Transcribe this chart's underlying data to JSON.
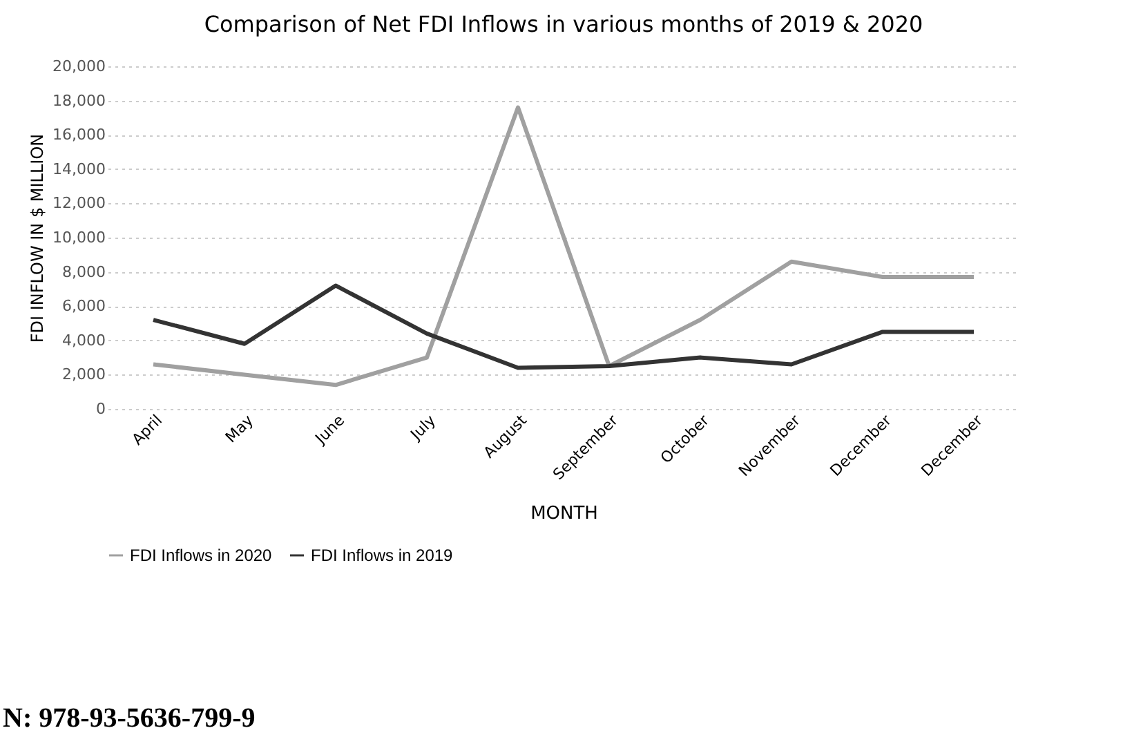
{
  "chart_data": {
    "type": "line",
    "title": "Comparison of Net FDI Inflows in various months of 2019 & 2020",
    "xlabel": "MONTH",
    "ylabel": "FDI INFLOW IN $ MILLION",
    "categories": [
      "April",
      "May",
      "June",
      "July",
      "August",
      "September",
      "October",
      "November",
      "December",
      "December"
    ],
    "series": [
      {
        "name": "FDI Inflows in 2020",
        "color": "#a0a0a0",
        "values": [
          2600,
          2000,
          1400,
          3000,
          17600,
          2500,
          5200,
          8600,
          7700,
          7700
        ]
      },
      {
        "name": "FDI Inflows in 2019",
        "color": "#333333",
        "values": [
          5200,
          3800,
          7200,
          4400,
          2400,
          2500,
          3000,
          2600,
          4500,
          4500
        ]
      }
    ],
    "ylim": [
      0,
      20000
    ],
    "yticks": [
      {
        "value": 0,
        "label": "0"
      },
      {
        "value": 2000,
        "label": "2,000"
      },
      {
        "value": 4000,
        "label": "4,000"
      },
      {
        "value": 6000,
        "label": "6,000"
      },
      {
        "value": 8000,
        "label": "8,000"
      },
      {
        "value": 10000,
        "label": "10,000"
      },
      {
        "value": 12000,
        "label": "12,000"
      },
      {
        "value": 14000,
        "label": "14,000"
      },
      {
        "value": 16000,
        "label": "16,000"
      },
      {
        "value": 18000,
        "label": "18,000"
      },
      {
        "value": 20000,
        "label": "20,000"
      }
    ],
    "grid": "y",
    "legend": "bottom",
    "marker": "none",
    "line_style": "solid",
    "annotations": [
      "N: 978-93-5636-799-9"
    ]
  }
}
